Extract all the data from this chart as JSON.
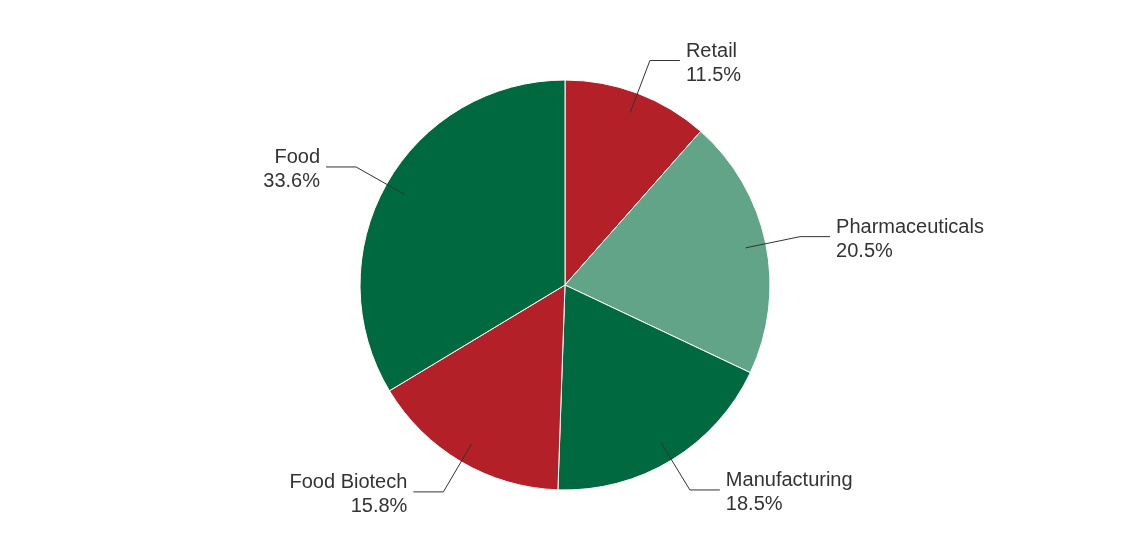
{
  "chart_data": {
    "type": "pie",
    "categories": [
      "Retail",
      "Pharmaceuticals",
      "Manufacturing",
      "Food Biotech",
      "Food"
    ],
    "values": [
      11.5,
      20.5,
      18.5,
      15.8,
      33.6
    ],
    "value_labels": [
      "11.5%",
      "20.5%",
      "18.5%",
      "15.8%",
      "33.6%"
    ],
    "colors": [
      "#b32028",
      "#62a487",
      "#006940",
      "#b32028",
      "#006940"
    ]
  }
}
